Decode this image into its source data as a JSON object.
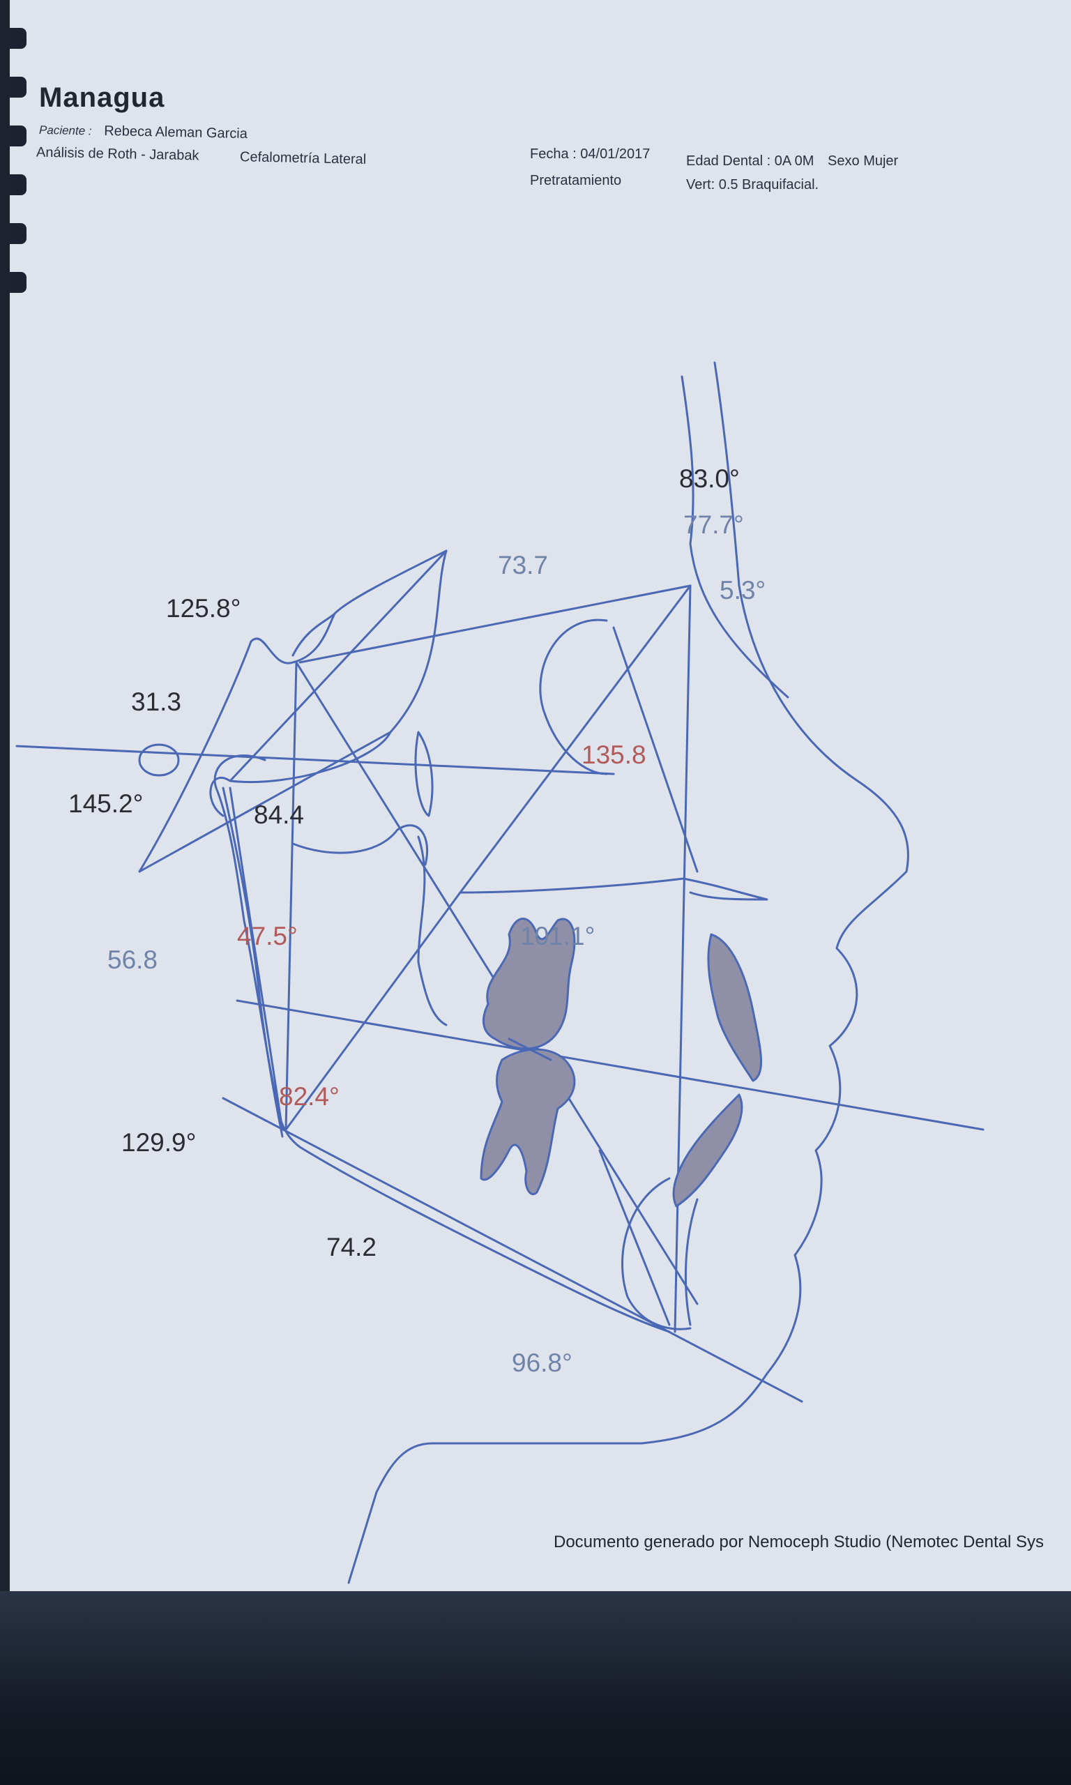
{
  "header": {
    "clinic": "Managua",
    "patient_label": "Paciente :",
    "patient_name": "Rebeca Aleman Garcia",
    "analysis": "Análisis de Roth - Jarabak",
    "study": "Cefalometría Lateral",
    "date_label": "Fecha :",
    "date": "04/01/2017",
    "dental_age_label": "Edad Dental :",
    "dental_age": "0A 0M",
    "sex_label": "Sexo",
    "sex": "Mujer",
    "phase": "Pretratamiento",
    "vert": "Vert: 0.5  Braquifacial."
  },
  "measurements": {
    "m_83": "83.0°",
    "m_77": "77.7°",
    "m_73": "73.7",
    "m_53": "5.3°",
    "m_125": "125.8°",
    "m_31": "31.3",
    "m_135": "135.8",
    "m_145": "145.2°",
    "m_84": "84.4",
    "m_56": "56.8",
    "m_47": "47.5°",
    "m_101": "101.1°",
    "m_82": "82.4°",
    "m_129": "129.9°",
    "m_74": "74.2",
    "m_96": "96.8°"
  },
  "colors": {
    "black_value": "#2b2b33",
    "blue_value": "#6f83a8",
    "red_value": "#b05a5a",
    "tracing": "#4a68b3"
  },
  "footer": {
    "text": "Documento generado por Nemoceph Studio (Nemotec Dental Sys"
  }
}
